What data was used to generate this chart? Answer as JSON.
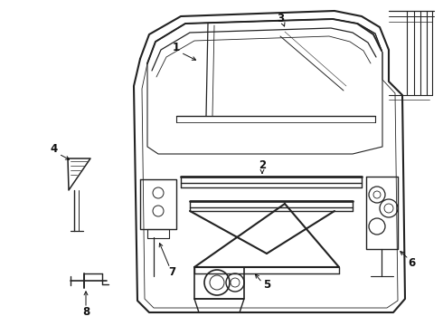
{
  "bg_color": "#ffffff",
  "line_color": "#222222",
  "label_color": "#111111",
  "label_fontsize": 8.5,
  "figure_width": 4.9,
  "figure_height": 3.6,
  "dpi": 100
}
